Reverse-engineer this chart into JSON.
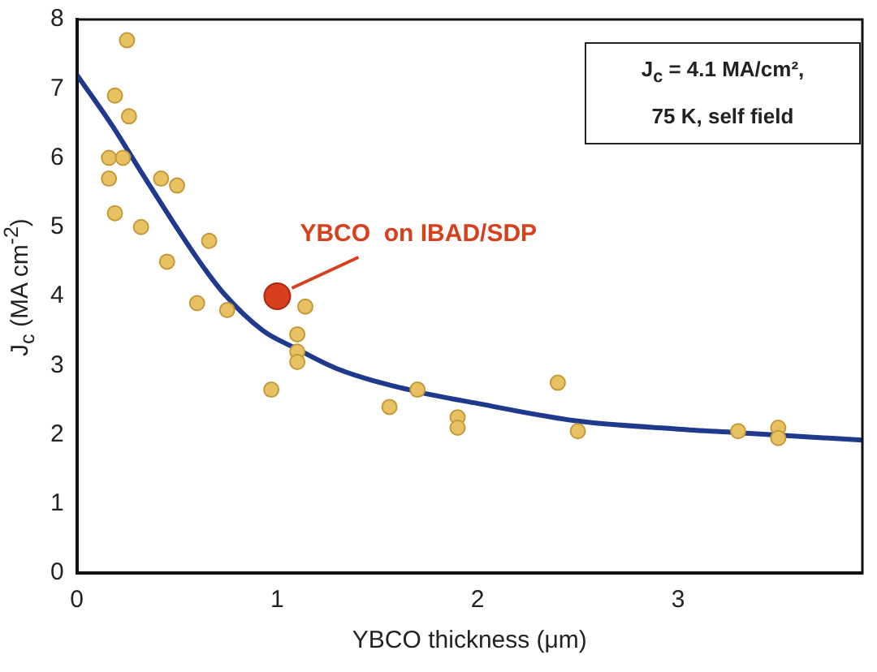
{
  "chart_data": {
    "type": "scatter",
    "xlabel": "YBCO thickness (μm)",
    "ylabel": "J$_{c}$ (MA cm$^{-2}$)",
    "xlim": [
      0,
      3.92
    ],
    "xticks": [
      0,
      1,
      2,
      3
    ],
    "ylim": [
      0,
      8
    ],
    "yticks": [
      0,
      1,
      2,
      3,
      4,
      5,
      6,
      7,
      8
    ],
    "grid": false,
    "legend": false,
    "marker": "circle",
    "series": [
      {
        "color": "#e8c262",
        "x": [
          0.25,
          0.19,
          0.26,
          0.16,
          0.23,
          0.16,
          0.19,
          0.32,
          0.42,
          0.5,
          0.45,
          0.66,
          0.6,
          0.75,
          1.14,
          1.1,
          1.1,
          1.1,
          0.97,
          1.7,
          1.56,
          1.9,
          1.9,
          2.4,
          2.5,
          3.3,
          3.5,
          3.5
        ],
        "values": [
          7.7,
          6.9,
          6.6,
          6.0,
          6.0,
          5.7,
          5.2,
          5.0,
          5.7,
          5.6,
          4.5,
          4.8,
          3.9,
          3.8,
          3.85,
          3.45,
          3.2,
          3.05,
          2.65,
          2.65,
          2.4,
          2.25,
          2.1,
          2.75,
          2.05,
          2.05,
          2.1,
          1.95
        ]
      },
      {
        "color": "#d6401c",
        "x": [
          1.0
        ],
        "values": [
          4.0
        ]
      },
      {
        "type": "line",
        "color": "#1f3a8c",
        "marker": "none",
        "x": [
          0,
          0.18,
          0.32,
          0.6,
          0.73,
          0.93,
          1.09,
          1.3,
          1.7,
          2.0,
          2.49,
          3.0,
          3.29,
          3.92
        ],
        "values": [
          7.2,
          6.45,
          5.8,
          4.55,
          4.05,
          3.5,
          3.25,
          2.95,
          2.62,
          2.45,
          2.2,
          2.08,
          2.03,
          1.92
        ]
      }
    ],
    "annotations": [
      {
        "text": "YBCO  on IBAD/SDP",
        "x": 1.0,
        "y": 4.0
      },
      "J$_{c}$ = 4.1 MA/cm², ",
      "75 K, self field"
    ]
  }
}
